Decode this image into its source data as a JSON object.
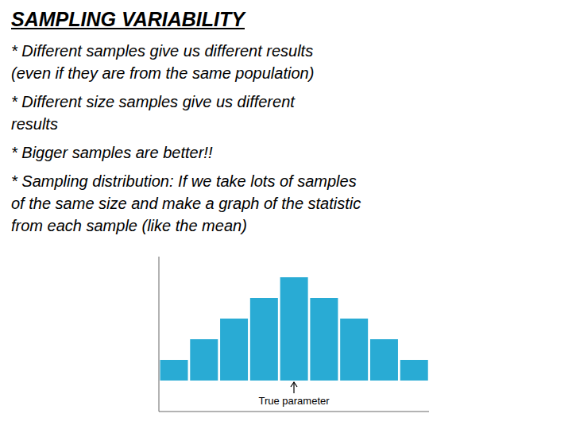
{
  "chart_data": {
    "type": "bar",
    "title": "SAMPLING VARIABILITY",
    "annotations": [
      "* Different samples give us different results",
      "(even if they are from the same population)",
      "* Different size samples give us different",
      "results",
      "* Bigger samples are better!!",
      "* Sampling distribution: If we take lots of samples",
      "of the same size and make a graph of the statistic",
      "from each sample (like the mean)",
      {
        "text": "True parameter",
        "index": 4
      }
    ],
    "categories": [
      null,
      null,
      null,
      null,
      null,
      null,
      null,
      null,
      null
    ],
    "values": [
      1,
      2,
      3,
      4,
      5,
      4,
      3,
      2,
      1
    ],
    "color": "#29ABD4",
    "ylim": [
      -1.5,
      6
    ],
    "grid": false,
    "tick_labels": false
  }
}
